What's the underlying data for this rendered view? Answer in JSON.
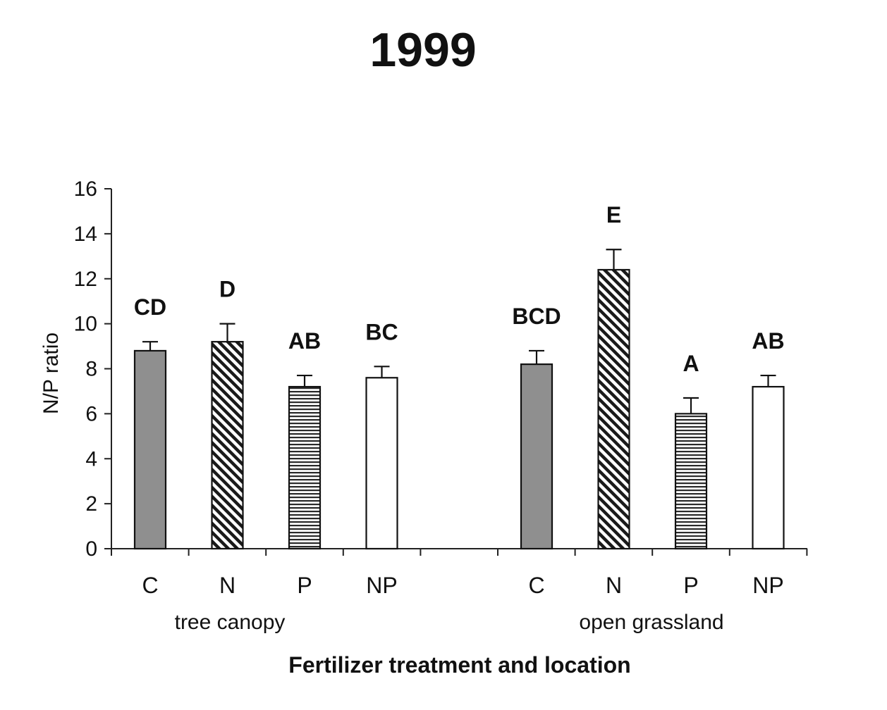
{
  "chart_data": {
    "type": "bar",
    "title": "1999",
    "xlabel": "Fertilizer treatment and location",
    "ylabel": "N/P ratio",
    "ylim": [
      0,
      16
    ],
    "yticks": [
      0,
      2,
      4,
      6,
      8,
      10,
      12,
      14,
      16
    ],
    "grid": false,
    "groups": [
      {
        "label": "tree canopy",
        "bars": [
          {
            "category": "C",
            "value": 8.8,
            "error": 0.4,
            "letter": "CD",
            "fill": "gray"
          },
          {
            "category": "N",
            "value": 9.2,
            "error": 0.8,
            "letter": "D",
            "fill": "diagonal-hatch"
          },
          {
            "category": "P",
            "value": 7.2,
            "error": 0.5,
            "letter": "AB",
            "fill": "horizontal-lines"
          },
          {
            "category": "NP",
            "value": 7.6,
            "error": 0.5,
            "letter": "BC",
            "fill": "white"
          }
        ]
      },
      {
        "label": "open grassland",
        "bars": [
          {
            "category": "C",
            "value": 8.2,
            "error": 0.6,
            "letter": "BCD",
            "fill": "gray"
          },
          {
            "category": "N",
            "value": 12.4,
            "error": 0.9,
            "letter": "E",
            "fill": "diagonal-hatch"
          },
          {
            "category": "P",
            "value": 6.0,
            "error": 0.7,
            "letter": "A",
            "fill": "horizontal-lines"
          },
          {
            "category": "NP",
            "value": 7.2,
            "error": 0.5,
            "letter": "AB",
            "fill": "white"
          }
        ]
      }
    ]
  }
}
